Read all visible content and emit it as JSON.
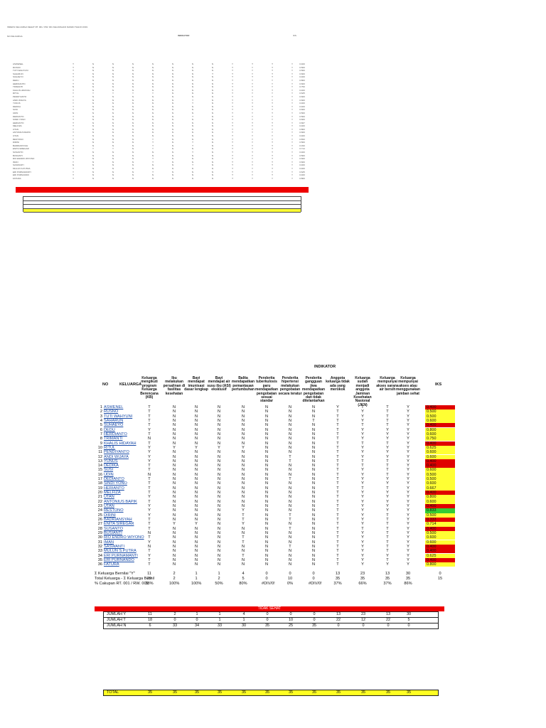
{
  "document": {
    "mini_title": "INDEKS KELUARGA SEHAT RT. 001 / RW. 001 KELURAHAN NAMAN TAHUN 2019",
    "mini_no_header": "NO   KELUARGA",
    "indikator_header": "INDIKATOR",
    "iks_header": "IKS",
    "no_header": "NO",
    "keluarga_header": "KELUARGA",
    "columns": [
      "Keluarga mengikuti program Keluarga Berencana (KB)",
      "Ibu melakukan persalinan di fasilitas kesehatan",
      "Bayi mendapat imunisasi dasar lengkap",
      "Bayi mendapat air susu ibu (ASI) eksklusif",
      "Balita mendapatkan pemantauan pertumbuhan",
      "Penderita tuberkulosis paru mendapatkan pengobatan sesuai standar",
      "Penderita hipertensi melakukan pengobatan secara teratur",
      "Penderita gangguan jiwa mendapatkan pengobatan dan tidak ditelantarkan",
      "Anggota keluarga tidak ada yang merokok",
      "Keluarga sudah menjadi anggota Jaminan Kesehatan Nasional (JKN)",
      "Keluarga mempunyai akses sarana air bersih",
      "Keluarga mempunyai akses atau menggunakan jamban sehat"
    ],
    "families": [
      {
        "no": "1",
        "name": "ASWENEL",
        "v": [
          "T",
          "N",
          "N",
          "N",
          "N",
          "N",
          "N",
          "N",
          "Y",
          "T",
          "T",
          "Y"
        ],
        "iks": "0.400"
      },
      {
        "no": "2",
        "name": "RUSNO",
        "v": [
          "T",
          "N",
          "N",
          "N",
          "N",
          "N",
          "N",
          "N",
          "T",
          "Y",
          "T",
          "Y"
        ],
        "iks": "0.500"
      },
      {
        "no": "3",
        "name": "TUTI WAHYUNI",
        "v": [
          "T",
          "N",
          "N",
          "N",
          "N",
          "N",
          "N",
          "N",
          "T",
          "Y",
          "T",
          "Y"
        ],
        "iks": "0.500"
      },
      {
        "no": "4",
        "name": "SAHARUN",
        "v": [
          "T",
          "N",
          "N",
          "N",
          "N",
          "N",
          "N",
          "T",
          "T",
          "Y",
          "T",
          "Y"
        ],
        "iks": "0.600"
      },
      {
        "no": "5",
        "name": "SUHAEYO",
        "v": [
          "T",
          "N",
          "N",
          "N",
          "N",
          "N",
          "N",
          "N",
          "T",
          "T",
          "T",
          "Y"
        ],
        "iks": "0.400"
      },
      {
        "no": "6",
        "name": "DEDU",
        "v": [
          "Y",
          "N",
          "N",
          "N",
          "N",
          "N",
          "N",
          "N",
          "T",
          "Y",
          "Y",
          "Y"
        ],
        "iks": "0.800"
      },
      {
        "no": "7",
        "name": "HERDIANTO",
        "v": [
          "T",
          "N",
          "N",
          "N",
          "N",
          "N",
          "N",
          "N",
          "T",
          "Y",
          "Y",
          "Y"
        ],
        "iks": "0.600"
      },
      {
        "no": "8",
        "name": "TRIMANTI",
        "v": [
          "N",
          "N",
          "N",
          "N",
          "N",
          "N",
          "N",
          "N",
          "T",
          "Y",
          "Y",
          "Y"
        ],
        "iks": "0.750"
      },
      {
        "no": "9",
        "name": "KHALIS HIDAYAH",
        "v": [
          "T",
          "N",
          "N",
          "N",
          "N",
          "N",
          "N",
          "N",
          "T",
          "T",
          "T",
          "Y"
        ],
        "iks": "0.400"
      },
      {
        "no": "10",
        "name": "RITUL",
        "v": [
          "Y",
          "Y",
          "Y",
          "Y",
          "Y",
          "N",
          "N",
          "N",
          "T",
          "Y",
          "Y",
          "Y"
        ],
        "iks": "0.625"
      },
      {
        "no": "11",
        "name": "PENDIYANTO",
        "v": [
          "Y",
          "N",
          "N",
          "N",
          "N",
          "N",
          "N",
          "N",
          "T",
          "Y",
          "Y",
          "Y"
        ],
        "iks": "0.600"
      },
      {
        "no": "12",
        "name": "ANDI WIJAYA",
        "v": [
          "Y",
          "N",
          "N",
          "N",
          "N",
          "N",
          "T",
          "N",
          "T",
          "Y",
          "Y",
          "Y"
        ],
        "iks": "0.600"
      },
      {
        "no": "13",
        "name": "YUNUS",
        "v": [
          "Y",
          "N",
          "N",
          "N",
          "N",
          "N",
          "T",
          "N",
          "T",
          "T",
          "T",
          "Y"
        ],
        "iks": "0.400"
      },
      {
        "no": "14",
        "name": "DEDIKA",
        "v": [
          "T",
          "N",
          "N",
          "N",
          "N",
          "N",
          "N",
          "N",
          "T",
          "T",
          "T",
          "Y"
        ],
        "iks": "0.400"
      },
      {
        "no": "15",
        "name": "SUSI",
        "v": [
          "T",
          "N",
          "N",
          "N",
          "N",
          "N",
          "N",
          "N",
          "T",
          "Y",
          "T",
          "Y"
        ],
        "iks": "0.600"
      },
      {
        "no": "16",
        "name": "UDIN",
        "v": [
          "N",
          "N",
          "N",
          "N",
          "N",
          "N",
          "N",
          "N",
          "T",
          "Y",
          "T",
          "Y"
        ],
        "iks": "0.500"
      },
      {
        "no": "17",
        "name": "DEDIANTO",
        "v": [
          "T",
          "N",
          "N",
          "N",
          "N",
          "N",
          "T",
          "N",
          "T",
          "Y",
          "Y",
          "Y"
        ],
        "iks": "0.500"
      },
      {
        "no": "18",
        "name": "SINDI YONO",
        "v": [
          "T",
          "N",
          "N",
          "N",
          "N",
          "N",
          "N",
          "N",
          "T",
          "Y",
          "Y",
          "Y"
        ],
        "iks": "0.600"
      },
      {
        "no": "19",
        "name": "HERIANTO",
        "v": [
          "T",
          "N",
          "N",
          "N",
          "N",
          "N",
          "N",
          "N",
          "T",
          "T",
          "T",
          "Y"
        ],
        "iks": "0.667"
      },
      {
        "no": "20",
        "name": "MELFIZA",
        "v": [
          "T",
          "N",
          "N",
          "N",
          "N",
          "N",
          "N",
          "N",
          "T",
          "Y",
          "Y",
          "Y"
        ],
        "iks": "0.400"
      },
      {
        "no": "21",
        "name": "UTAN",
        "v": [
          "Y",
          "N",
          "N",
          "N",
          "N",
          "N",
          "N",
          "N",
          "T",
          "Y",
          "Y",
          "Y"
        ],
        "iks": "0.800"
      },
      {
        "no": "22",
        "name": "ANTONIUS BAPIK",
        "v": [
          "T",
          "N",
          "N",
          "N",
          "N",
          "N",
          "N",
          "N",
          "T",
          "Y",
          "Y",
          "Y"
        ],
        "iks": "0.600"
      },
      {
        "no": "23",
        "name": "UTAN",
        "v": [
          "Y",
          "N",
          "N",
          "N",
          "N",
          "N",
          "N",
          "N",
          "T",
          "Y",
          "Y",
          "Y"
        ],
        "iks": "0.400"
      },
      {
        "no": "24",
        "name": "RESTONO",
        "v": [
          "Y",
          "N",
          "N",
          "N",
          "Y",
          "N",
          "N",
          "N",
          "T",
          "Y",
          "Y",
          "Y"
        ],
        "iks": "0.833"
      },
      {
        "no": "25",
        "name": "DIRINI",
        "v": [
          "Y",
          "N",
          "N",
          "N",
          "T",
          "N",
          "T",
          "N",
          "T",
          "Y",
          "T",
          "Y"
        ],
        "iks": "0.500"
      },
      {
        "no": "26",
        "name": "BADRIANSYAH",
        "v": [
          "T",
          "N",
          "N",
          "N",
          "T",
          "N",
          "T",
          "N",
          "T",
          "Y",
          "T",
          "Y"
        ],
        "iks": "0.333"
      },
      {
        "no": "27",
        "name": "ENITA SIREGAR",
        "v": [
          "T",
          "Y",
          "Y",
          "N",
          "Y",
          "N",
          "N",
          "N",
          "T",
          "Y",
          "T",
          "Y"
        ],
        "iks": "0.714"
      },
      {
        "no": "28",
        "name": "SUSANTO",
        "v": [
          "T",
          "N",
          "N",
          "N",
          "N",
          "N",
          "T",
          "N",
          "T",
          "T",
          "T",
          "Y"
        ],
        "iks": "0.400"
      },
      {
        "no": "29",
        "name": "BUSIANTI",
        "v": [
          "N",
          "N",
          "N",
          "N",
          "N",
          "N",
          "N",
          "N",
          "T",
          "Y",
          "T",
          "Y"
        ],
        "iks": "0.500"
      },
      {
        "no": "30",
        "name": "RIO ENDRO WIYONO",
        "v": [
          "T",
          "N",
          "N",
          "N",
          "T",
          "N",
          "N",
          "N",
          "T",
          "Y",
          "T",
          "Y"
        ],
        "iks": "0.600"
      },
      {
        "no": "31",
        "name": "IMAN",
        "v": [
          "Y",
          "N",
          "N",
          "N",
          "T",
          "N",
          "N",
          "N",
          "T",
          "Y",
          "T",
          "Y"
        ],
        "iks": "0.600"
      },
      {
        "no": "32",
        "name": "SASWANTI",
        "v": [
          "N",
          "N",
          "N",
          "N",
          "N",
          "N",
          "T",
          "N",
          "T",
          "Y",
          "T",
          "Y"
        ],
        "iks": "0.400"
      },
      {
        "no": "33",
        "name": "MULUN S.PUTRA",
        "v": [
          "T",
          "N",
          "N",
          "N",
          "N",
          "N",
          "N",
          "N",
          "T",
          "Y",
          "T",
          "Y"
        ],
        "iks": "0.400"
      },
      {
        "no": "34",
        "name": "ERI PURNAMANTI",
        "v": [
          "Y",
          "N",
          "N",
          "N",
          "T",
          "N",
          "N",
          "N",
          "T",
          "Y",
          "Y",
          "Y"
        ],
        "iks": "0.625"
      },
      {
        "no": "35",
        "name": "ERI PURNANDO",
        "v": [
          "T",
          "N",
          "N",
          "N",
          "N",
          "N",
          "N",
          "N",
          "T",
          "Y",
          "T",
          "Y"
        ],
        "iks": "0.400"
      },
      {
        "no": "36",
        "name": "FATURA",
        "v": [
          "T",
          "N",
          "N",
          "N",
          "N",
          "N",
          "N",
          "N",
          "T",
          "Y",
          "Y",
          "Y"
        ],
        "iks": "0.800"
      }
    ],
    "summary": {
      "sum_y_label": "Σ Keluarga Bernilai \"Y\"",
      "total_label": "Total Keluarga - Σ Keluarga Bernil",
      "pct_label": "% Cakupan RT. 001 / RW. 001",
      "sum_y": [
        "11",
        "2",
        "1",
        "1",
        "4",
        "0",
        "0",
        "0",
        "13",
        "23",
        "13",
        "30",
        "0"
      ],
      "total": [
        "29",
        "2",
        "1",
        "2",
        "5",
        "0",
        "10",
        "0",
        "35",
        "35",
        "35",
        "35",
        "15"
      ],
      "pct": [
        "38%",
        "100%",
        "100%",
        "50%",
        "80%",
        "#DIV/0!",
        "0%",
        "#DIV/0!",
        "37%",
        "66%",
        "37%",
        "86%",
        ""
      ]
    },
    "banner": "TIDAK SEHAT",
    "jumlah_box": [
      {
        "label": "JUMLAH Y",
        "v": [
          "11",
          "2",
          "1",
          "1",
          "4",
          "0",
          "0",
          "0",
          "13",
          "23",
          "13",
          "30"
        ]
      },
      {
        "label": "JUMLAH T",
        "v": [
          "18",
          "0",
          "0",
          "1",
          "1",
          "0",
          "10",
          "0",
          "22",
          "12",
          "22",
          "5"
        ]
      },
      {
        "label": "JUMLAH N",
        "v": [
          "6",
          "33",
          "34",
          "33",
          "30",
          "35",
          "25",
          "35",
          "0",
          "0",
          "0",
          "0"
        ]
      }
    ],
    "total_box": {
      "label": "TOTAL",
      "v": [
        "35",
        "35",
        "35",
        "35",
        "35",
        "35",
        "35",
        "35",
        "35",
        "35",
        "35",
        "35"
      ]
    }
  },
  "colors": {
    "red": "#e00000",
    "yellow": "#ffff33",
    "green": "#33cc33",
    "link": "#1a4ca8"
  }
}
